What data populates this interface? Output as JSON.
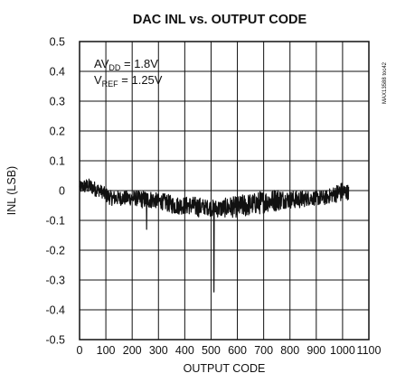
{
  "chart_data": {
    "type": "line",
    "title": "DAC INL vs. OUTPUT CODE",
    "xlabel": "OUTPUT CODE",
    "ylabel": "INL (LSB)",
    "xlim": [
      0,
      1100
    ],
    "ylim": [
      -0.5,
      0.5
    ],
    "x_ticks": [
      "0",
      "100",
      "200",
      "300",
      "400",
      "500",
      "600",
      "700",
      "800",
      "900",
      "1000",
      "1100"
    ],
    "y_ticks": [
      "0.5",
      "0.4",
      "0.3",
      "0.2",
      "0.1",
      "0",
      "-0.1",
      "-0.2",
      "-0.3",
      "-0.4",
      "-0.5"
    ],
    "grid": true,
    "annotations": {
      "avdd_base": "AV",
      "avdd_sub": "DD",
      "avdd_value": " = 1.8V",
      "vref_base": "V",
      "vref_sub": "REF",
      "vref_value": " = 1.25V"
    },
    "side_label": "MAX13588 toc42",
    "series": [
      {
        "color": "#111111",
        "envelope_x": [
          0,
          20,
          40,
          60,
          80,
          100,
          120,
          150,
          180,
          210,
          240,
          270,
          300,
          330,
          360,
          390,
          420,
          450,
          480,
          510,
          540,
          570,
          600,
          630,
          660,
          690,
          720,
          750,
          780,
          810,
          840,
          870,
          900,
          930,
          960,
          990,
          1023
        ],
        "envelope_max": [
          0.03,
          0.04,
          0.04,
          0.03,
          0.02,
          0.01,
          0.0,
          0.0,
          0.0,
          0.0,
          0.0,
          0.0,
          -0.01,
          -0.01,
          -0.02,
          -0.02,
          -0.02,
          -0.02,
          -0.03,
          -0.03,
          -0.03,
          -0.02,
          -0.02,
          -0.01,
          -0.01,
          0.0,
          0.0,
          0.01,
          0.0,
          0.0,
          0.0,
          0.0,
          0.0,
          0.0,
          0.01,
          0.03,
          0.02
        ],
        "envelope_min": [
          -0.01,
          -0.01,
          -0.01,
          -0.02,
          -0.02,
          -0.04,
          -0.05,
          -0.05,
          -0.05,
          -0.05,
          -0.06,
          -0.06,
          -0.06,
          -0.07,
          -0.08,
          -0.08,
          -0.08,
          -0.09,
          -0.08,
          -0.09,
          -0.09,
          -0.09,
          -0.09,
          -0.09,
          -0.08,
          -0.08,
          -0.07,
          -0.07,
          -0.06,
          -0.06,
          -0.06,
          -0.05,
          -0.05,
          -0.05,
          -0.04,
          -0.04,
          -0.03
        ],
        "spikes": [
          [
            255,
            -0.13
          ],
          [
            511,
            -0.34
          ]
        ]
      }
    ]
  }
}
